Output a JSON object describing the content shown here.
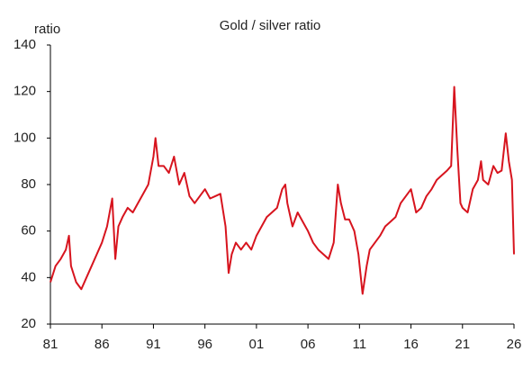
{
  "chart_data": {
    "type": "line",
    "title": "Gold / silver ratio",
    "ylabel": "ratio",
    "x": [
      1981.0,
      1981.5,
      1982.0,
      1982.5,
      1982.8,
      1983.0,
      1983.5,
      1984.0,
      1984.5,
      1985.0,
      1985.5,
      1986.0,
      1986.5,
      1987.0,
      1987.3,
      1987.6,
      1988.0,
      1988.5,
      1989.0,
      1989.5,
      1990.0,
      1990.5,
      1991.0,
      1991.2,
      1991.5,
      1992.0,
      1992.5,
      1993.0,
      1993.5,
      1994.0,
      1994.5,
      1995.0,
      1995.5,
      1996.0,
      1996.5,
      1997.0,
      1997.5,
      1998.0,
      1998.3,
      1998.6,
      1999.0,
      1999.5,
      2000.0,
      2000.5,
      2001.0,
      2001.5,
      2002.0,
      2002.5,
      2003.0,
      2003.5,
      2003.8,
      2004.0,
      2004.5,
      2005.0,
      2005.5,
      2006.0,
      2006.5,
      2007.0,
      2007.5,
      2008.0,
      2008.5,
      2008.9,
      2009.2,
      2009.6,
      2010.0,
      2010.5,
      2010.9,
      2011.3,
      2011.7,
      2012.0,
      2012.5,
      2013.0,
      2013.5,
      2014.0,
      2014.5,
      2015.0,
      2015.5,
      2016.0,
      2016.5,
      2017.0,
      2017.5,
      2018.0,
      2018.5,
      2019.0,
      2019.5,
      2019.9,
      2020.2,
      2020.5,
      2020.8,
      2021.0,
      2021.5,
      2022.0,
      2022.5,
      2022.8,
      2023.0,
      2023.5,
      2024.0,
      2024.4,
      2024.8,
      2025.2,
      2025.5,
      2025.8,
      2026.0
    ],
    "series": [
      {
        "name": "Gold / silver ratio",
        "color": "#d7141e",
        "values": [
          38,
          45,
          48,
          52,
          58,
          45,
          38,
          35,
          40,
          45,
          50,
          55,
          62,
          74,
          48,
          62,
          66,
          70,
          68,
          72,
          76,
          80,
          92,
          100,
          88,
          88,
          85,
          92,
          80,
          85,
          75,
          72,
          75,
          78,
          74,
          75,
          76,
          62,
          42,
          50,
          55,
          52,
          55,
          52,
          58,
          62,
          66,
          68,
          70,
          78,
          80,
          72,
          62,
          68,
          64,
          60,
          55,
          52,
          50,
          48,
          55,
          80,
          72,
          65,
          65,
          60,
          50,
          33,
          45,
          52,
          55,
          58,
          62,
          64,
          66,
          72,
          75,
          78,
          68,
          70,
          75,
          78,
          82,
          84,
          86,
          88,
          122,
          95,
          72,
          70,
          68,
          78,
          82,
          90,
          82,
          80,
          88,
          85,
          86,
          102,
          90,
          82,
          50
        ]
      }
    ],
    "xlim": [
      1981,
      2026
    ],
    "xticks": [
      {
        "value": 1981,
        "label": "81"
      },
      {
        "value": 1986,
        "label": "86"
      },
      {
        "value": 1991,
        "label": "91"
      },
      {
        "value": 1996,
        "label": "96"
      },
      {
        "value": 2001,
        "label": "01"
      },
      {
        "value": 2006,
        "label": "06"
      },
      {
        "value": 2011,
        "label": "11"
      },
      {
        "value": 2016,
        "label": "16"
      },
      {
        "value": 2021,
        "label": "21"
      },
      {
        "value": 2026,
        "label": "26"
      }
    ],
    "ylim": [
      20,
      140
    ],
    "yticks": [
      20,
      40,
      60,
      80,
      100,
      120,
      140
    ],
    "grid": false
  }
}
